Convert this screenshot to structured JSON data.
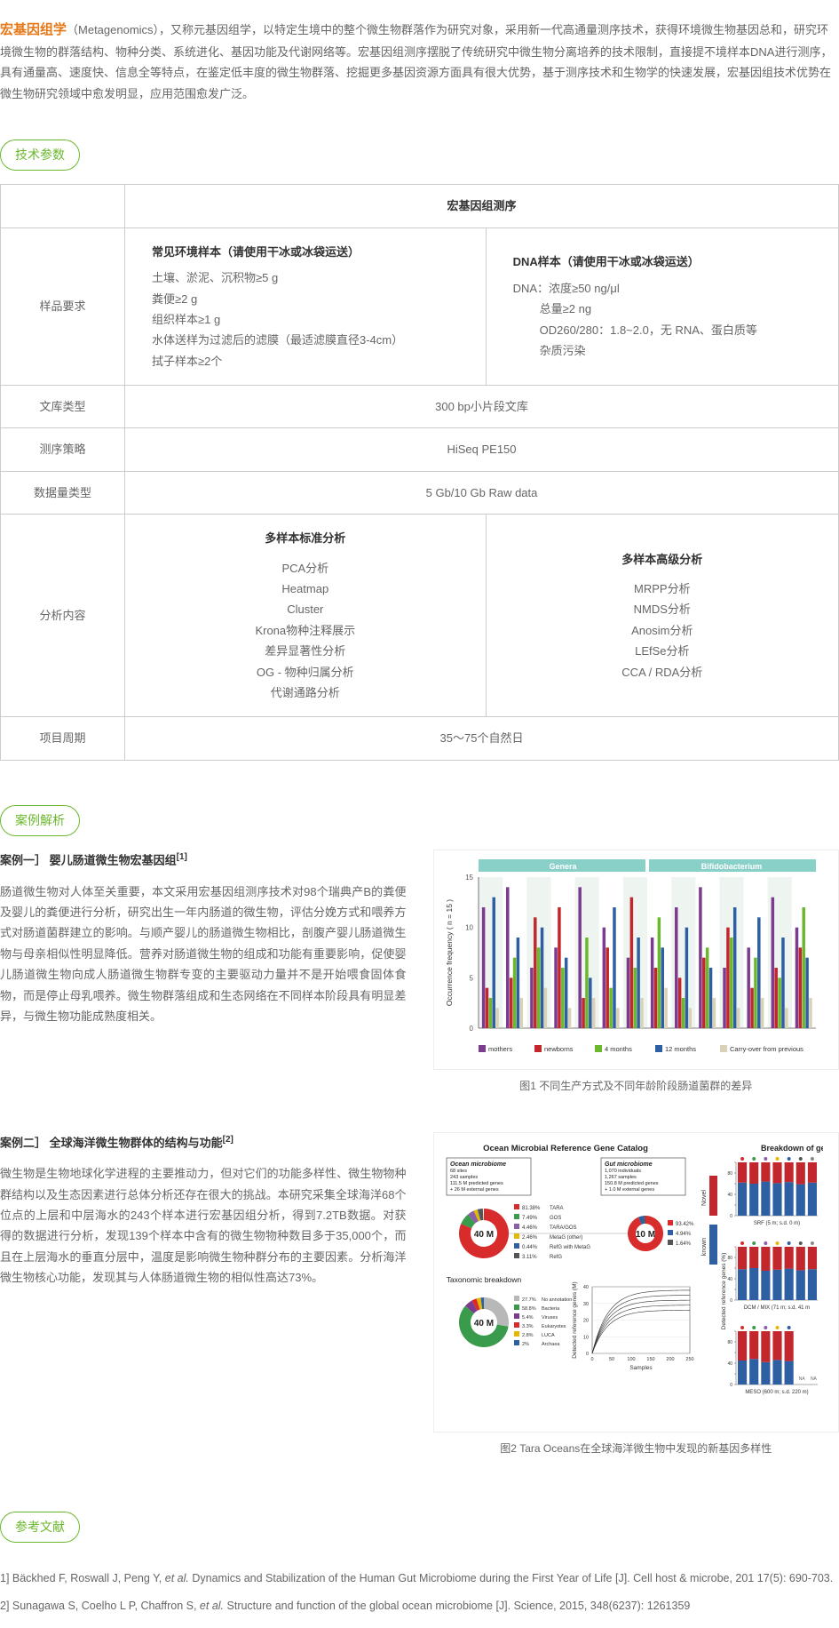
{
  "intro": {
    "keyword": "宏基因组学",
    "body": "（Metagenomics），又称元基因组学，以特定生境中的整个微生物群落作为研究对象，采用新一代高通量测序技术，获得环境微生物基因总和，研究环境微生物的群落结构、物种分类、系统进化、基因功能及代谢网络等。宏基因组测序摆脱了传统研究中微生物分离培养的技术限制，直接提不境样本DNA进行测序，具有通量高、速度快、信息全等特点，在鉴定低丰度的微生物群落、挖掘更多基因资源方面具有很大优势，基于测序技术和生物学的快速发展，宏基因组技术优势在微生物研究领域中愈发明显，应用范围愈发广泛。"
  },
  "sections": {
    "params": "技术参数",
    "cases": "案例解析",
    "refs": "参考文献"
  },
  "table": {
    "header": "宏基因组测序",
    "rows": {
      "r1_label": "样品要求",
      "env_head": "常见环境样本（请使用干冰或冰袋运送）",
      "env_l1": "土壤、淤泥、沉积物≥5 g",
      "env_l2": "粪便≥2 g",
      "env_l3": "组织样本≥1 g",
      "env_l4": "水体送样为过滤后的滤膜（最适滤膜直径3-4cm）",
      "env_l5": "拭子样本≥2个",
      "dna_head": "DNA样本（请使用干冰或冰袋运送）",
      "dna_l1": "DNA：浓度≥50 ng/μl",
      "dna_l2": "总量≥2 ng",
      "dna_l3": "OD260/280：1.8~2.0，无 RNA、蛋白质等",
      "dna_l4": "杂质污染",
      "r2_label": "文库类型",
      "r2_val": "300 bp小片段文库",
      "r3_label": "测序策略",
      "r3_val": "HiSeq PE150",
      "r4_label": "数据量类型",
      "r4_val": "5 Gb/10 Gb Raw data",
      "r5_label": "分析内容",
      "std_head": "多样本标准分析",
      "std_l1": "PCA分析",
      "std_l2": "Heatmap",
      "std_l3": "Cluster",
      "std_l4": "Krona物种注释展示",
      "std_l5": "差异显著性分析",
      "std_l6": "OG - 物种归属分析",
      "std_l7": "代谢通路分析",
      "adv_head": "多样本高级分析",
      "adv_l1": "MRPP分析",
      "adv_l2": "NMDS分析",
      "adv_l3": "Anosim分析",
      "adv_l4": "LEfSe分析",
      "adv_l5": "CCA / RDA分析",
      "r6_label": "项目周期",
      "r6_val": "35～75个自然日"
    }
  },
  "case1": {
    "title_prefix": "案例一］ 婴儿肠道微生物宏基因组",
    "sup": "[1]",
    "body": "肠道微生物对人体至关重要，本文采用宏基因组测序技术对98个瑞典产B的粪便及婴儿的粪便进行分析，研究出生一年内肠道的微生物，评估分娩方式和喂养方式对肠道菌群建立的影响。与顺产婴儿的肠道微生物相比，剖腹产婴儿肠道微生物与母亲相似性明显降低。营养对肠道微生物的组成和功能有重要影响，促使婴儿肠道微生物向成人肠道微生物群专变的主要驱动力量并不是开始喂食固体食物，而是停止母乳喂养。微生物群落组成和生态网络在不同样本阶段具有明显差异，与微生物功能成熟度相关。",
    "caption": "图1 不同生产方式及不同年龄阶段肠道菌群的差异",
    "chart": {
      "type": "grouped-bar",
      "panel_labels": [
        "Genera",
        "Bifidobacterium"
      ],
      "panel_label_bg": "#89d0c8",
      "y_label": "Occurrence frequency  ( n = 15 )",
      "y_ticks": [
        0,
        5,
        10,
        15
      ],
      "legend": [
        {
          "label": "mothers",
          "color": "#7d3b8f"
        },
        {
          "label": "newborns",
          "color": "#c1272d"
        },
        {
          "label": "4 months",
          "color": "#6bb82d"
        },
        {
          "label": "12 months",
          "color": "#2e5fa3"
        },
        {
          "label": "Carry-over from previous",
          "color": "#d9d2b6"
        }
      ],
      "stripe_bg": "#eef5f1",
      "groups": [
        [
          12,
          4,
          3,
          13,
          2
        ],
        [
          14,
          5,
          7,
          9,
          3
        ],
        [
          6,
          11,
          8,
          10,
          4
        ],
        [
          8,
          12,
          6,
          7,
          2
        ],
        [
          14,
          3,
          9,
          5,
          3
        ],
        [
          10,
          8,
          4,
          12,
          2
        ],
        [
          7,
          13,
          6,
          9,
          3
        ],
        [
          9,
          6,
          11,
          8,
          4
        ],
        [
          12,
          5,
          3,
          10,
          2
        ],
        [
          14,
          7,
          8,
          6,
          3
        ],
        [
          6,
          10,
          9,
          12,
          2
        ],
        [
          8,
          4,
          7,
          11,
          3
        ],
        [
          13,
          6,
          5,
          9,
          2
        ],
        [
          10,
          8,
          12,
          7,
          3
        ]
      ]
    }
  },
  "case2": {
    "title_prefix": "案例二］ 全球海洋微生物群体的结构与功能",
    "sup": "[2]",
    "body": "微生物是生物地球化学进程的主要推动力，但对它们的功能多样性、微生物物种群结构以及生态因素进行总体分析还存在很大的挑战。本研究采集全球海洋68个位点的上层和中层海水的243个样本进行宏基因组分析，得到7.2TB数据。对获得的数据进行分析，发现139个样本中含有的微生物物种数目多于35,000个，而且在上层海水的垂直分层中，温度是影响微生物种群分布的主要因素。分析海洋微生物核心功能，发现其与人体肠道微生物的相似性高达73%。",
    "caption": "图2 Tara Oceans在全球海洋微生物中发现的新基因多样性",
    "fig": {
      "title": "Ocean Microbial Reference Gene Catalog",
      "ocean_box_lines": [
        "Ocean microbiome",
        "68 sites",
        "243 samples",
        "111.5 M predicted genes",
        "+ 26 M external genes"
      ],
      "gut_box_lines": [
        "Gut microbiome",
        "1,070 individuals",
        "1,267 samples",
        "150.8 M predicted genes",
        "+ 1.0 M external genes"
      ],
      "left_donut": {
        "center": "40 M",
        "segments": [
          {
            "c": "#d82c2c",
            "p": 81.38,
            "l": "TARA"
          },
          {
            "c": "#3a9b4c",
            "p": 7.49,
            "l": "GOS"
          },
          {
            "c": "#8a5fa8",
            "p": 4.46,
            "l": "TARA/GOS"
          },
          {
            "c": "#e6b800",
            "p": 2.46,
            "l": "MetaG (other)"
          },
          {
            "c": "#2e5fa3",
            "p": 0.44,
            "l": "RefG with MetaG"
          },
          {
            "c": "#555",
            "p": 3.11,
            "l": "RefG"
          }
        ]
      },
      "right_donut": {
        "center": "10 M",
        "segments": [
          {
            "c": "#d82c2c",
            "p": 93.42
          },
          {
            "c": "#2e5fa3",
            "p": 4.94
          },
          {
            "c": "#555",
            "p": 1.64
          }
        ]
      },
      "tax_title": "Taxonomic breakdown",
      "tax_donut": {
        "center": "40 M",
        "segments": [
          {
            "c": "#b8b8b8",
            "p": 27.7,
            "l": "No annotation"
          },
          {
            "c": "#3a9b4c",
            "p": 58.8,
            "l": "Bacteria"
          },
          {
            "c": "#7d3b8f",
            "p": 5.4,
            "l": "Viruses"
          },
          {
            "c": "#d82c2c",
            "p": 3.3,
            "l": "Eukaryotes"
          },
          {
            "c": "#e6b800",
            "p": 2.8,
            "l": "LUCA"
          },
          {
            "c": "#2e5fa3",
            "p": 2.0,
            "l": "Archaea"
          }
        ]
      },
      "curve_xlabel": "Samples",
      "curve_ylabel": "Detected reference genes (M)",
      "curve_xticks": [
        0,
        50,
        100,
        150,
        200,
        250
      ],
      "curve_yticks": [
        0,
        10,
        20,
        30,
        40
      ],
      "novelty_title": "Breakdown of gene novelt",
      "novelty_legend": [
        {
          "l": "Novel",
          "c": "#c1272d"
        },
        {
          "l": "known",
          "c": "#2e5fa3"
        }
      ],
      "novelty_ylabel": "Detected reference genes (%)",
      "panels": [
        {
          "label": "SRF (5 m; s.d. 0 m)",
          "bars": [
            [
              38,
              62
            ],
            [
              40,
              60
            ],
            [
              36,
              64
            ],
            [
              39,
              61
            ],
            [
              37,
              63
            ],
            [
              41,
              59
            ],
            [
              38,
              62
            ]
          ]
        },
        {
          "label": "DCM / MIX (71 m; s.d. 41 m",
          "bars": [
            [
              42,
              58
            ],
            [
              40,
              60
            ],
            [
              45,
              55
            ],
            [
              43,
              57
            ],
            [
              41,
              59
            ],
            [
              44,
              56
            ],
            [
              42,
              58
            ]
          ]
        },
        {
          "label": "MESO (600 m; s.d. 220 m)",
          "bars": [
            [
              55,
              45
            ],
            [
              52,
              48
            ],
            [
              58,
              42
            ],
            [
              54,
              46
            ],
            [
              56,
              44
            ],
            [
              53,
              47
            ],
            [
              0,
              0
            ]
          ],
          "na": [
            5,
            6
          ]
        }
      ]
    }
  },
  "refs": [
    {
      "n": "1]",
      "text": "Bäckhed F, Roswall J, Peng Y, et al. Dynamics and Stabilization of the Human Gut Microbiome during the First Year of Life [J]. Cell host & microbe, 201 17(5): 690-703."
    },
    {
      "n": "2]",
      "text": "Sunagawa S, Coelho L P, Chaffron S, et al. Structure and function of the global ocean microbiome [J]. Science, 2015, 348(6237): 1261359"
    }
  ]
}
